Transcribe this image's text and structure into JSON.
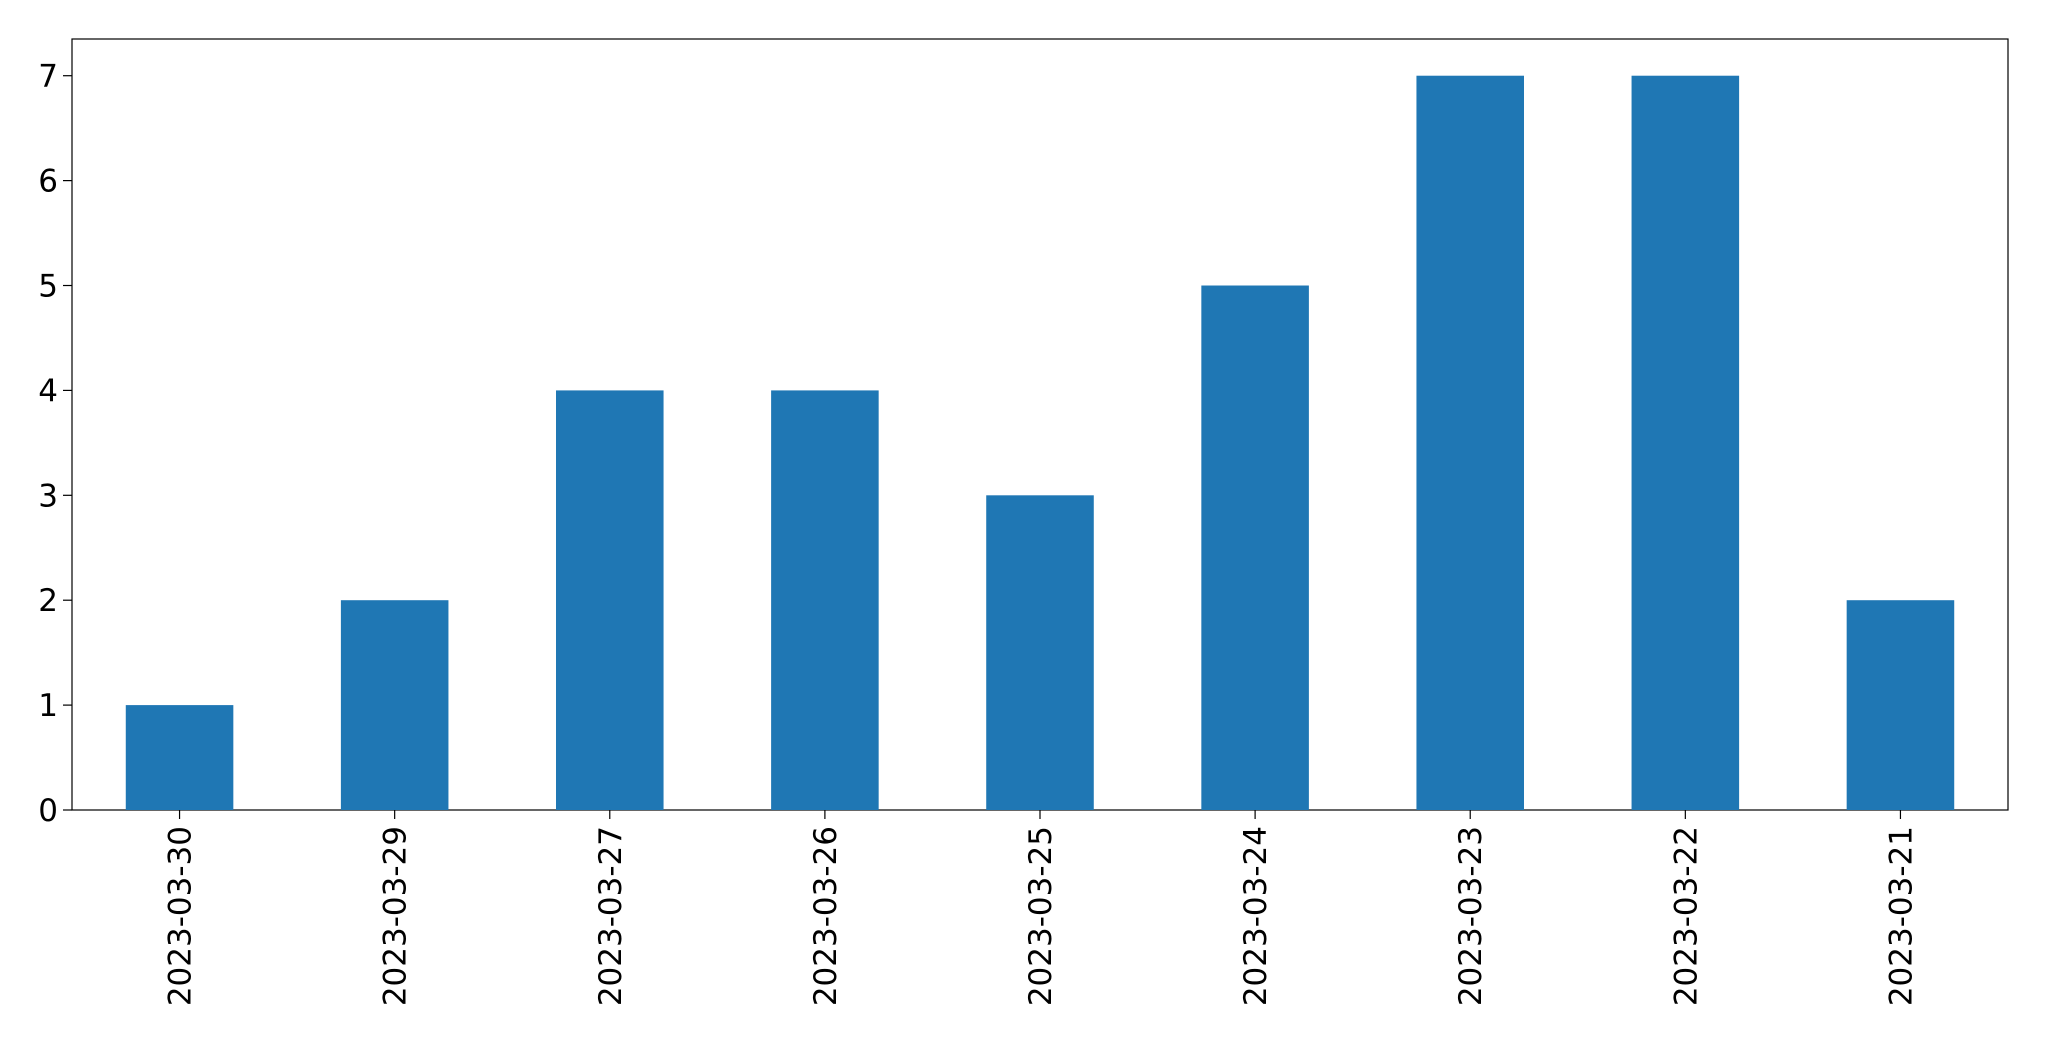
{
  "chart_data": {
    "type": "bar",
    "categories": [
      "2023-03-30",
      "2023-03-29",
      "2023-03-27",
      "2023-03-26",
      "2023-03-25",
      "2023-03-24",
      "2023-03-23",
      "2023-03-22",
      "2023-03-21"
    ],
    "values": [
      1,
      2,
      4,
      4,
      3,
      5,
      7,
      7,
      2
    ],
    "color": "#1f77b4",
    "ylim": [
      0,
      7.35
    ],
    "yticks": [
      0,
      1,
      2,
      3,
      4,
      5,
      6,
      7
    ],
    "grid": false
  }
}
